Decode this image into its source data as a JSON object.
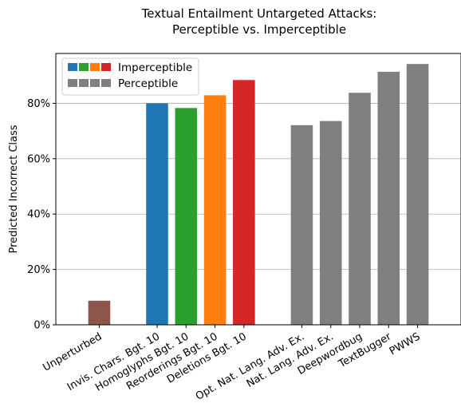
{
  "chart_data": {
    "type": "bar",
    "title_lines": [
      "Textual Entailment Untargeted Attacks:",
      "Perceptible vs. Imperceptible"
    ],
    "ylabel": "Predicted Incorrect Class",
    "ylim": [
      0,
      98
    ],
    "yticks": [
      0,
      20,
      40,
      60,
      80
    ],
    "ytick_labels": [
      "0%",
      "20%",
      "40%",
      "60%",
      "80%"
    ],
    "grid": "y",
    "categories": [
      "Unperturbed",
      "Invis. Chars. Bgt. 10",
      "Homoglyphs Bgt. 10",
      "Reorderings Bgt. 10",
      "Deletions Bgt. 10",
      "Opt. Nat. Lang. Adv. Ex.",
      "Nat. Lang. Adv. Ex.",
      "Deepwordbug",
      "TextBugger",
      "PWWS"
    ],
    "slots": [
      1,
      3,
      4,
      5,
      6,
      8,
      9,
      10,
      11,
      12
    ],
    "values": [
      8.7,
      80.0,
      78.3,
      82.9,
      88.4,
      72.1,
      73.6,
      83.8,
      91.4,
      94.2
    ],
    "colors": [
      "#8c564b",
      "#1f77b4",
      "#2ca02c",
      "#ff7f0e",
      "#d62728",
      "#7f7f7f",
      "#7f7f7f",
      "#7f7f7f",
      "#7f7f7f",
      "#7f7f7f"
    ],
    "legend_position": "top-left",
    "legend": [
      {
        "label": "Imperceptible",
        "swatches": [
          "#1f77b4",
          "#2ca02c",
          "#ff7f0e",
          "#d62728"
        ]
      },
      {
        "label": "Perceptible",
        "swatches": [
          "#7f7f7f",
          "#7f7f7f",
          "#7f7f7f",
          "#7f7f7f"
        ]
      }
    ]
  }
}
